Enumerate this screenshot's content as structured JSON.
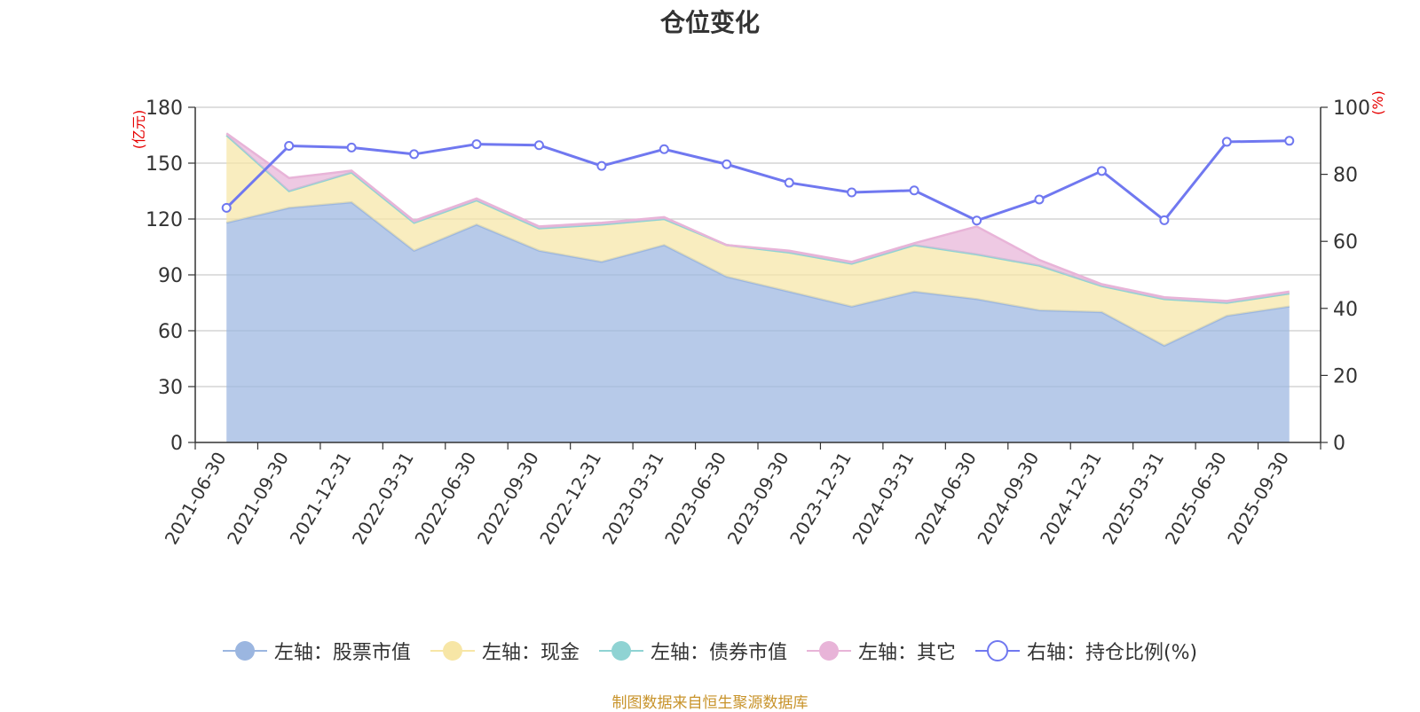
{
  "chart_data": {
    "type": "area",
    "title": "仓位变化",
    "left_axis": {
      "unit_label": "(亿元)",
      "ylim": [
        0,
        180
      ],
      "ticks": [
        0,
        30,
        60,
        90,
        120,
        150,
        180
      ]
    },
    "right_axis": {
      "unit_label": "(%)",
      "ylim": [
        0,
        100
      ],
      "ticks": [
        0,
        20,
        40,
        60,
        80,
        100
      ]
    },
    "categories": [
      "2021-06-30",
      "2021-09-30",
      "2021-12-31",
      "2022-03-31",
      "2022-06-30",
      "2022-09-30",
      "2022-12-31",
      "2023-03-31",
      "2023-06-30",
      "2023-09-30",
      "2023-12-31",
      "2024-03-31",
      "2024-06-30",
      "2024-09-30",
      "2024-12-31",
      "2025-03-31",
      "2025-06-30",
      "2025-09-30"
    ],
    "series": [
      {
        "name": "左轴：股票市值",
        "axis": "left",
        "kind": "stacked-area",
        "color": "#9bb6e0",
        "values": [
          118,
          126,
          129,
          103,
          117,
          103,
          97,
          106,
          89,
          81,
          73,
          81,
          77,
          71,
          70,
          52,
          68,
          73
        ]
      },
      {
        "name": "左轴：现金",
        "axis": "left",
        "kind": "stacked-area",
        "color": "#f7e6a6",
        "values": [
          47,
          9,
          16,
          15,
          13,
          12,
          20,
          14,
          17,
          21,
          23,
          25,
          24,
          24,
          14,
          25,
          7,
          7
        ]
      },
      {
        "name": "左轴：债券市值",
        "axis": "left",
        "kind": "stacked-area",
        "color": "#8fd3d3",
        "values": [
          0,
          0,
          0,
          0,
          0,
          0,
          0,
          0,
          0,
          0,
          0,
          0,
          0,
          0,
          0,
          0,
          0,
          0
        ]
      },
      {
        "name": "左轴：其它",
        "axis": "left",
        "kind": "stacked-area",
        "color": "#e8b4d8",
        "values": [
          1,
          7,
          1,
          1,
          1,
          1,
          1,
          1,
          0,
          1,
          1,
          1,
          15,
          3,
          1,
          1,
          1,
          1
        ]
      },
      {
        "name": "右轴：持仓比例(%)",
        "axis": "right",
        "kind": "line",
        "color": "#7078f0",
        "values": [
          70,
          88.5,
          88,
          86,
          89,
          88.7,
          82.5,
          87.5,
          83,
          77.5,
          74.6,
          75.2,
          66.2,
          72.5,
          81,
          66.3,
          89.7,
          90
        ]
      }
    ]
  },
  "source_note": "制图数据来自恒生聚源数据库"
}
